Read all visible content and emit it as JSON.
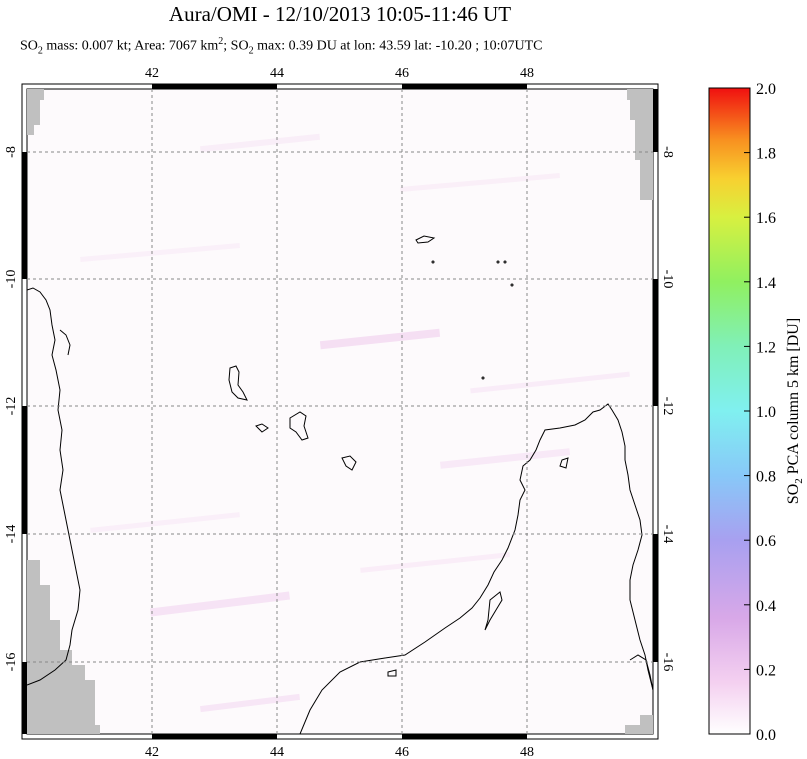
{
  "header": {
    "title": "Aura/OMI - 12/10/2013 10:05-11:46 UT",
    "subtitle": {
      "so2_label": "SO",
      "so2_sub": "2",
      "mass_text": " mass: 0.007 kt; Area: 7067 km",
      "area_sup": "2",
      "sep": "; SO",
      "max_text": " max: 0.39 DU at lon: 43.59 lat: -10.20 ; 10:07UTC"
    }
  },
  "map": {
    "lon_ticks": [
      "42",
      "44",
      "46",
      "48"
    ],
    "lat_ticks": [
      "-8",
      "-10",
      "-12",
      "-14",
      "-16"
    ],
    "lon_range": [
      40,
      50
    ],
    "lat_range": [
      -17.2,
      -7.0
    ],
    "gridlines": true
  },
  "colorbar": {
    "ticks": [
      "2.0",
      "1.8",
      "1.6",
      "1.4",
      "1.2",
      "1.0",
      "0.8",
      "0.6",
      "0.4",
      "0.2",
      "0.0"
    ],
    "label": "SO2 PCA column 5 km [DU]",
    "label_parts": {
      "a": "SO",
      "sub": "2",
      "b": " PCA column 5 km [DU]"
    },
    "range": [
      0.0,
      2.0
    ],
    "colors": [
      "#ffffff",
      "#f0c8f0",
      "#c8a0e8",
      "#a0a0f0",
      "#80c0f8",
      "#80f0f0",
      "#80f0b0",
      "#90f060",
      "#d8f040",
      "#f8d030",
      "#f89020",
      "#f84010",
      "#f01010"
    ]
  }
}
